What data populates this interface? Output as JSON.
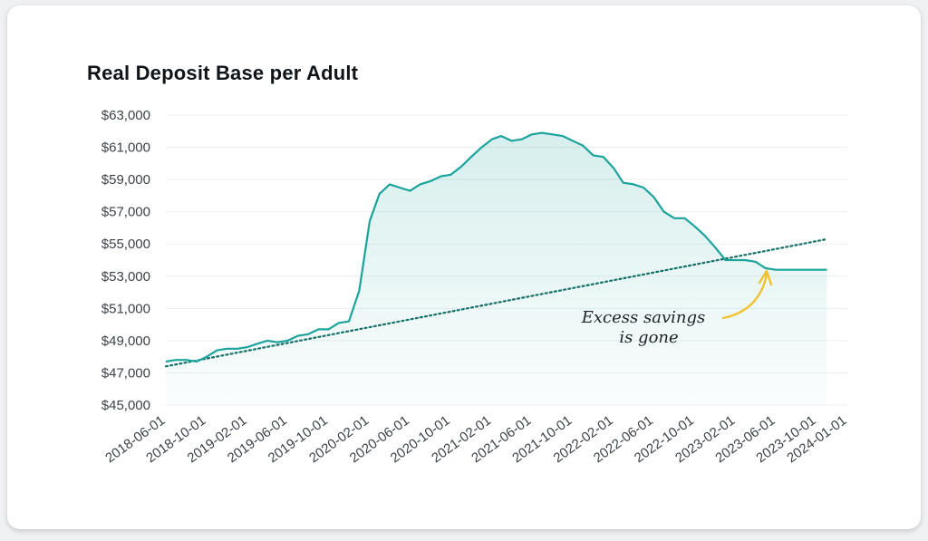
{
  "chart_data": {
    "type": "area",
    "title": "Real Deposit Base per Adult",
    "xlabel": "",
    "ylabel": "",
    "ylim": [
      45000,
      63000
    ],
    "xlim": [
      "2018-06-01",
      "2024-01-01"
    ],
    "y_ticks": [
      "$45,000",
      "$47,000",
      "$49,000",
      "$51,000",
      "$53,000",
      "$55,000",
      "$57,000",
      "$59,000",
      "$61,000",
      "$63,000"
    ],
    "x_ticks": [
      "2018-06-01",
      "2018-10-01",
      "2019-02-01",
      "2019-06-01",
      "2019-10-01",
      "2020-02-01",
      "2020-06-01",
      "2020-10-01",
      "2021-02-01",
      "2021-06-01",
      "2021-10-01",
      "2022-02-01",
      "2022-06-01",
      "2022-10-01",
      "2023-02-01",
      "2023-06-01",
      "2023-10-01",
      "2024-01-01"
    ],
    "grid": true,
    "colors": {
      "line": "#1ba39c",
      "trend": "#16706a",
      "arrow": "#f2c230",
      "fill": "#1ba39c"
    },
    "series": [
      {
        "name": "",
        "x": [
          "2018-06-01",
          "2018-07-01",
          "2018-08-01",
          "2018-09-01",
          "2018-10-01",
          "2018-11-01",
          "2018-12-01",
          "2019-01-01",
          "2019-02-01",
          "2019-03-01",
          "2019-04-01",
          "2019-05-01",
          "2019-06-01",
          "2019-07-01",
          "2019-08-01",
          "2019-09-01",
          "2019-10-01",
          "2019-11-01",
          "2019-12-01",
          "2020-01-01",
          "2020-02-01",
          "2020-03-01",
          "2020-04-01",
          "2020-05-01",
          "2020-06-01",
          "2020-07-01",
          "2020-08-01",
          "2020-09-01",
          "2020-10-01",
          "2020-11-01",
          "2020-12-01",
          "2021-01-01",
          "2021-02-01",
          "2021-03-01",
          "2021-04-01",
          "2021-05-01",
          "2021-06-01",
          "2021-07-01",
          "2021-08-01",
          "2021-09-01",
          "2021-10-01",
          "2021-11-01",
          "2021-12-01",
          "2022-01-01",
          "2022-02-01",
          "2022-03-01",
          "2022-04-01",
          "2022-05-01",
          "2022-06-01",
          "2022-07-01",
          "2022-08-01",
          "2022-09-01",
          "2022-10-01",
          "2022-11-01",
          "2022-12-01",
          "2023-01-01",
          "2023-02-01",
          "2023-03-01",
          "2023-04-01",
          "2023-05-01",
          "2023-06-01",
          "2023-07-01",
          "2023-08-01",
          "2023-09-01",
          "2023-10-01",
          "2023-11-01"
        ],
        "values": [
          47700,
          47800,
          47800,
          47700,
          48000,
          48400,
          48500,
          48500,
          48600,
          48800,
          49000,
          48900,
          49000,
          49300,
          49400,
          49700,
          49700,
          50100,
          50200,
          52100,
          56400,
          58100,
          58700,
          58500,
          58300,
          58700,
          58900,
          59200,
          59300,
          59800,
          60400,
          61000,
          61500,
          61700,
          61400,
          61500,
          61800,
          61900,
          61800,
          61700,
          61400,
          61100,
          60500,
          60400,
          59700,
          58800,
          58700,
          58500,
          57900,
          57000,
          56600,
          56600,
          56100,
          55500,
          54800,
          54000,
          54000,
          54000,
          53900,
          53500,
          53400,
          53400,
          53400,
          53400,
          53400,
          53400
        ]
      }
    ],
    "trendline": {
      "start": {
        "x": "2018-06-01",
        "y": 47400
      },
      "end": {
        "x": "2023-11-01",
        "y": 55300
      }
    },
    "annotation": {
      "lines": [
        "Excess savings",
        "is gone"
      ]
    }
  }
}
